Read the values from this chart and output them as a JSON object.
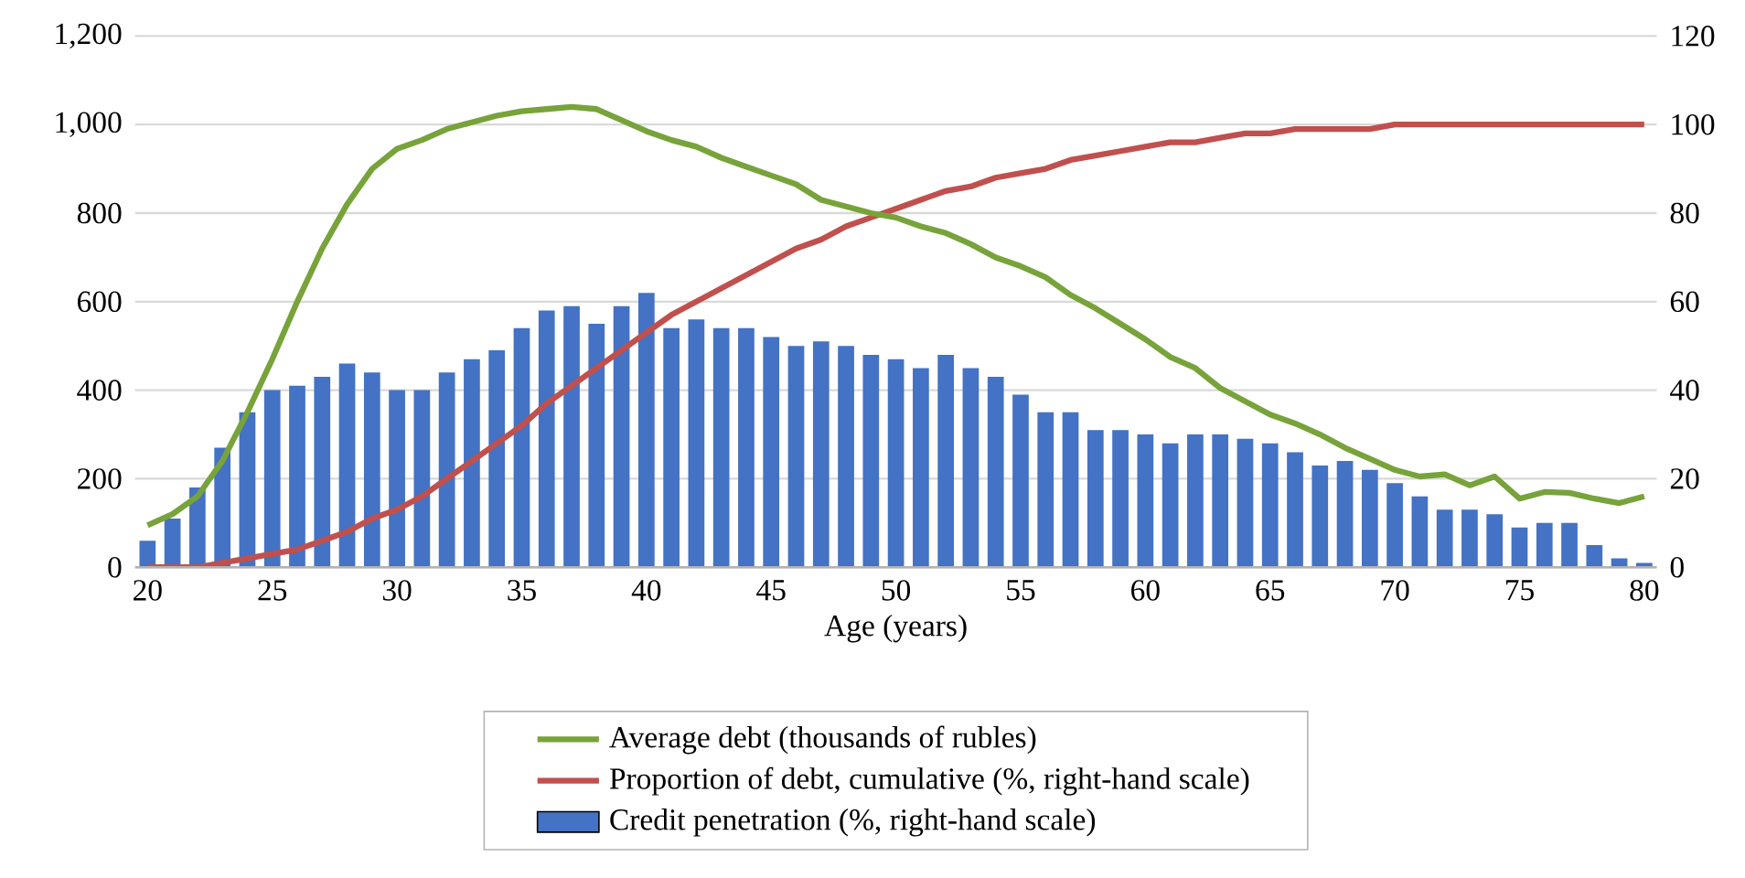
{
  "chart_data": {
    "type": "line",
    "xlabel": "Age (years)",
    "x": [
      20,
      21,
      22,
      23,
      24,
      25,
      26,
      27,
      28,
      29,
      30,
      31,
      32,
      33,
      34,
      35,
      36,
      37,
      38,
      39,
      40,
      41,
      42,
      43,
      44,
      45,
      46,
      47,
      48,
      49,
      50,
      51,
      52,
      53,
      54,
      55,
      56,
      57,
      58,
      59,
      60,
      61,
      62,
      63,
      64,
      65,
      66,
      67,
      68,
      69,
      70,
      71,
      72,
      73,
      74,
      75,
      76,
      77,
      78,
      79,
      80
    ],
    "series": [
      {
        "name": "Average debt (thousands of rubles)",
        "color": "#77a33a",
        "values": [
          95,
          120,
          160,
          240,
          350,
          470,
          600,
          720,
          820,
          900,
          945,
          965,
          990,
          1005,
          1020,
          1030,
          1035,
          1040,
          1035,
          1010,
          985,
          965,
          950,
          925,
          905,
          885,
          865,
          830,
          815,
          800,
          790,
          770,
          755,
          730,
          700,
          680,
          655,
          615,
          585,
          550,
          515,
          475,
          450,
          405,
          375,
          345,
          325,
          300,
          270,
          245,
          220,
          205,
          210,
          185,
          205,
          155,
          170,
          168,
          155,
          145,
          160
        ]
      },
      {
        "name": "Proportion of debt, cumulative (%, right-hand scale)",
        "type": "line",
        "axis": "y2",
        "color": "#c0504d",
        "values": [
          0,
          0,
          0,
          1,
          2,
          3,
          4,
          6,
          8,
          11,
          13,
          16,
          20,
          24,
          28,
          32,
          37,
          41,
          45,
          49,
          53,
          57,
          60,
          63,
          66,
          69,
          72,
          74,
          77,
          79,
          81,
          83,
          85,
          86,
          88,
          89,
          90,
          92,
          93,
          94,
          95,
          96,
          96,
          97,
          98,
          98,
          99,
          99,
          99,
          99,
          100,
          100,
          100,
          100,
          100,
          100,
          100,
          100,
          100,
          100,
          100
        ]
      },
      {
        "name": "Credit penetration (%, right-hand scale)",
        "type": "bar",
        "axis": "y2",
        "color": "#4472c4",
        "values": [
          6,
          11,
          18,
          27,
          35,
          40,
          41,
          43,
          46,
          44,
          40,
          40,
          44,
          47,
          49,
          54,
          58,
          59,
          55,
          59,
          62,
          54,
          56,
          54,
          54,
          52,
          50,
          51,
          50,
          48,
          47,
          45,
          48,
          45,
          43,
          39,
          35,
          35,
          31,
          31,
          30,
          28,
          30,
          30,
          29,
          28,
          26,
          23,
          24,
          22,
          19,
          16,
          13,
          13,
          12,
          9,
          10,
          10,
          5,
          2,
          1
        ]
      }
    ],
    "xlim": [
      19.5,
      80.5
    ],
    "xticks": [
      20,
      25,
      30,
      35,
      40,
      45,
      50,
      55,
      60,
      65,
      70,
      75,
      80
    ],
    "ylim": [
      0,
      1200
    ],
    "yticks": [
      0,
      200,
      400,
      600,
      800,
      {
        "value": 1000,
        "label": "1,000"
      },
      {
        "value": 1200,
        "label": "1,200"
      }
    ],
    "y2lim": [
      0,
      120
    ],
    "y2ticks": [
      0,
      20,
      40,
      60,
      80,
      100,
      120
    ],
    "grid": "y",
    "legend": "bottom",
    "line_style": "solid"
  }
}
